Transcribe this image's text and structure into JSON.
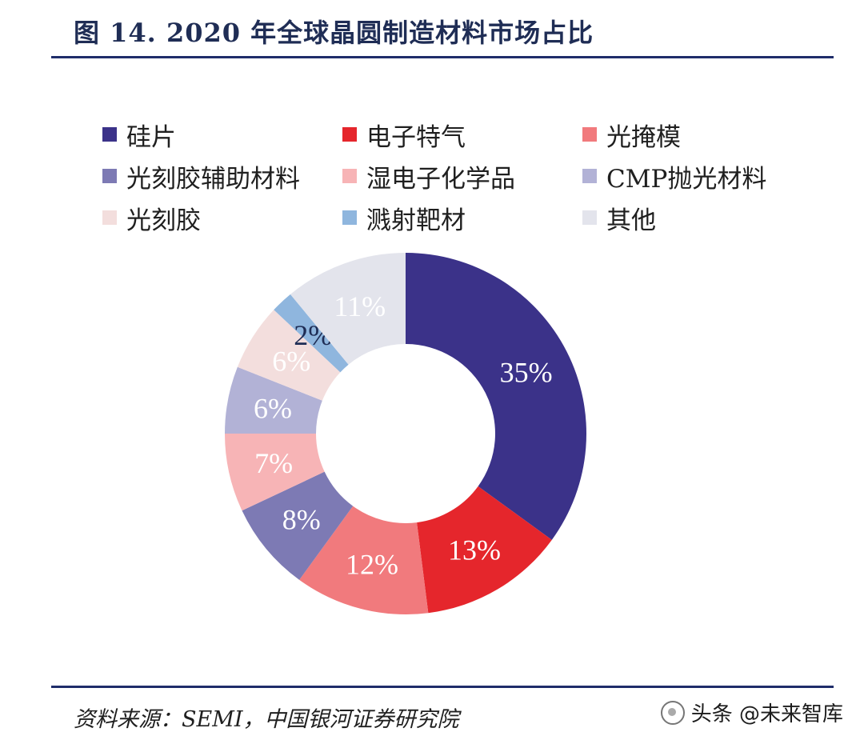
{
  "header": {
    "title": "图 14. 2020 年全球晶圆制造材料市场占比"
  },
  "chart_data": {
    "type": "pie",
    "title": "图 14. 2020 年全球晶圆制造材料市场占比",
    "categories": [
      "硅片",
      "电子特气",
      "光掩模",
      "光刻胶辅助材料",
      "湿电子化学品",
      "CMP抛光材料",
      "光刻胶",
      "溅射靶材",
      "其他"
    ],
    "values": [
      35,
      13,
      12,
      8,
      7,
      6,
      6,
      2,
      11
    ],
    "labels": [
      "35%",
      "13%",
      "12%",
      "8%",
      "7%",
      "6%",
      "6%",
      "2%",
      "11%"
    ],
    "colors": [
      "#3b3289",
      "#e5262c",
      "#f17a7d",
      "#7d7ab4",
      "#f7b4b6",
      "#b2b2d6",
      "#f3dedd",
      "#8fb6de",
      "#e3e4ec"
    ],
    "label_colors": [
      "#ffffff",
      "#ffffff",
      "#ffffff",
      "#ffffff",
      "#ffffff",
      "#ffffff",
      "#ffffff",
      "#1f2d55",
      "#ffffff"
    ]
  },
  "legend": [
    {
      "label": "硅片",
      "color": "#3b3289"
    },
    {
      "label": "电子特气",
      "color": "#e5262c"
    },
    {
      "label": "光掩模",
      "color": "#f17a7d"
    },
    {
      "label": "光刻胶辅助材料",
      "color": "#7d7ab4"
    },
    {
      "label": "湿电子化学品",
      "color": "#f7b4b6"
    },
    {
      "label": "CMP抛光材料",
      "color": "#b2b2d6"
    },
    {
      "label": "光刻胶",
      "color": "#f3dedd"
    },
    {
      "label": "溅射靶材",
      "color": "#8fb6de"
    },
    {
      "label": "其他",
      "color": "#e3e4ec"
    }
  ],
  "footer": {
    "source": "资料来源：SEMI，中国银河证券研究院",
    "watermark": "头条 @未来智库"
  }
}
